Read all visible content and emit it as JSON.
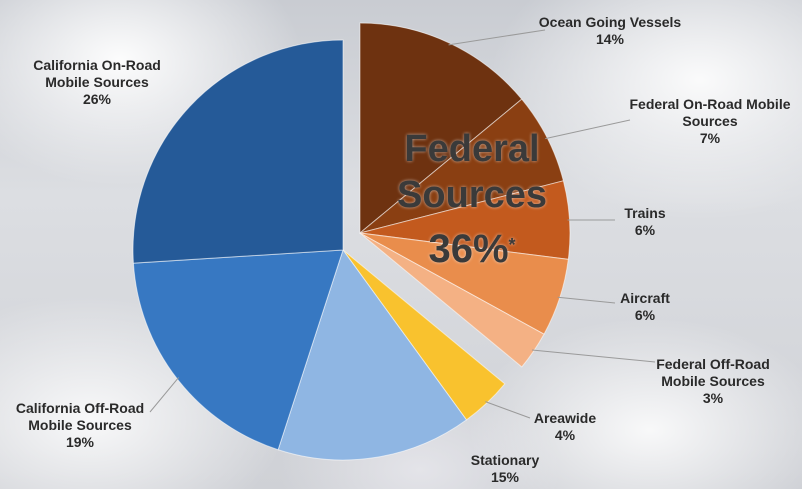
{
  "chart_data": {
    "type": "pie",
    "slices": [
      {
        "label": "Ocean Going Vessels",
        "value": 14,
        "display": "14%",
        "color": "#6e3210",
        "group": "federal"
      },
      {
        "label": "Federal On-Road Mobile Sources",
        "value": 7,
        "display": "7%",
        "color": "#8a3f12",
        "group": "federal"
      },
      {
        "label": "Trains",
        "value": 6,
        "display": "6%",
        "color": "#c35a1e",
        "group": "federal"
      },
      {
        "label": "Aircraft",
        "value": 6,
        "display": "6%",
        "color": "#e98d4c",
        "group": "federal"
      },
      {
        "label": "Federal Off-Road Mobile Sources",
        "value": 3,
        "display": "3%",
        "color": "#f4b184",
        "group": "federal"
      },
      {
        "label": "Areawide",
        "value": 4,
        "display": "4%",
        "color": "#f9c22e",
        "group": "california"
      },
      {
        "label": "Stationary",
        "value": 15,
        "display": "15%",
        "color": "#8fb6e3",
        "group": "california"
      },
      {
        "label": "California Off-Road Mobile Sources",
        "value": 19,
        "display": "19%",
        "color": "#3778c2",
        "group": "california"
      },
      {
        "label": "California On-Road Mobile Sources",
        "value": 26,
        "display": "26%",
        "color": "#255a98",
        "group": "california"
      }
    ],
    "annotation": {
      "line1": "Federal",
      "line2": "Sources",
      "value": "36%",
      "footnote_mark": "*"
    }
  }
}
